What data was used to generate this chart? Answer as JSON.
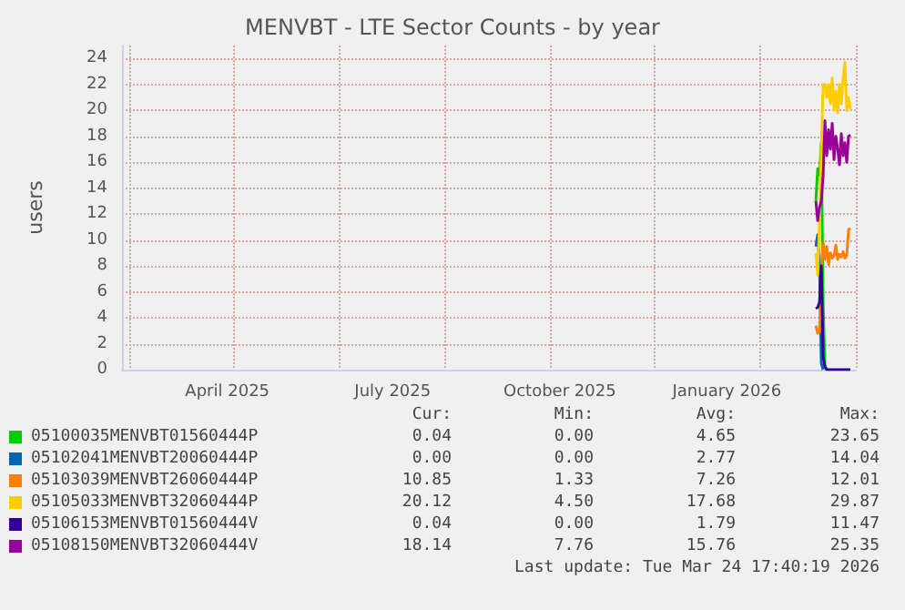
{
  "chart_data": {
    "type": "line",
    "title": "MENVBT - LTE Sector Counts - by year",
    "ylabel": "users",
    "x": [
      "2026-03-05",
      "2026-03-06",
      "2026-03-07",
      "2026-03-08",
      "2026-03-09",
      "2026-03-10",
      "2026-03-11",
      "2026-03-12",
      "2026-03-13",
      "2026-03-14",
      "2026-03-15",
      "2026-03-16",
      "2026-03-17",
      "2026-03-18",
      "2026-03-19",
      "2026-03-20",
      "2026-03-21",
      "2026-03-22",
      "2026-03-23",
      "2026-03-24"
    ],
    "xlim": [
      "2025-02-16",
      "2026-03-27"
    ],
    "xticks": [
      {
        "value": "2025-04-15",
        "label": "April 2025"
      },
      {
        "value": "2025-07-15",
        "label": "July 2025"
      },
      {
        "value": "2025-10-15",
        "label": "October 2025"
      },
      {
        "value": "2026-01-15",
        "label": "January 2026"
      }
    ],
    "ylim": [
      0,
      25
    ],
    "yticks": [
      0,
      2,
      4,
      6,
      8,
      10,
      12,
      14,
      16,
      18,
      20,
      22,
      24
    ],
    "grid": true,
    "legend": "bottom left",
    "series": [
      {
        "name": "05100035MENVBT01560444P",
        "color": "#00cc00",
        "values": [
          13,
          15.5,
          15,
          17.5,
          5,
          0.3,
          0,
          null,
          null,
          null,
          null,
          null,
          null,
          null,
          null,
          null,
          null,
          null,
          null,
          null
        ]
      },
      {
        "name": "05102041MENVBT20060444P",
        "color": "#0066b3",
        "values": [
          9.5,
          10.4,
          8,
          0.5,
          0,
          null,
          null,
          null,
          null,
          null,
          null,
          null,
          null,
          null,
          null,
          null,
          null,
          null,
          null,
          null
        ]
      },
      {
        "name": "05103039MENVBT26060444P",
        "color": "#ff8000",
        "values": [
          3.4,
          2.8,
          2.9,
          8,
          9.8,
          8.5,
          9.5,
          8.1,
          9,
          8.6,
          8.8,
          9.6,
          8.5,
          8.9,
          8.7,
          9.1,
          8.6,
          8.8,
          10.8,
          10.9
        ]
      },
      {
        "name": "05105033MENVBT32060444P",
        "color": "#ffcc00",
        "values": [
          9,
          7.3,
          11.5,
          17,
          22,
          22,
          21,
          22,
          20.5,
          22.5,
          20,
          21.5,
          19.8,
          22,
          20.5,
          22.5,
          23.7,
          20,
          21,
          20.1
        ]
      },
      {
        "name": "05106153MENVBT01560444V",
        "color": "#330099",
        "values": [
          4.7,
          4.8,
          5.2,
          8,
          1,
          0.2,
          0,
          0,
          0,
          0,
          0,
          0,
          0,
          0,
          0,
          0,
          0,
          0,
          0,
          0
        ]
      },
      {
        "name": "05108150MENVBT32060444V",
        "color": "#990099",
        "values": [
          13,
          11.5,
          12.5,
          13,
          15,
          19.2,
          16.5,
          18.5,
          17,
          19,
          16.2,
          18,
          17,
          15.8,
          18.2,
          16.5,
          17.5,
          16,
          18,
          18.1
        ]
      }
    ],
    "annotations": [
      "Cur:",
      "Min:",
      "Avg:",
      "Max:",
      "0.04",
      "0.00",
      "4.65",
      "23.65",
      "0.00",
      "0.00",
      "2.77",
      "14.04",
      "10.85",
      "1.33",
      "7.26",
      "12.01",
      "20.12",
      "4.50",
      "17.68",
      "29.87",
      "0.04",
      "0.00",
      "1.79",
      "11.47",
      "18.14",
      "7.76",
      "15.76",
      "25.35",
      "Last update: Tue Mar 24 17:40:19 2026"
    ]
  }
}
